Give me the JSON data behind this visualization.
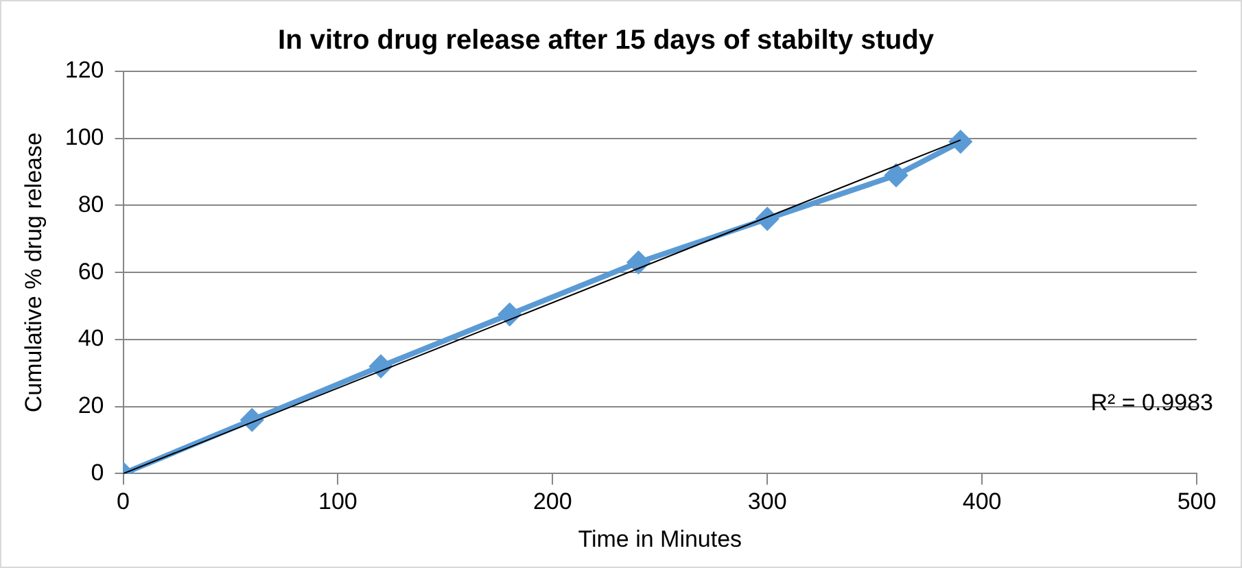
{
  "chart_data": {
    "type": "line",
    "title": "In vitro drug release after 15 days of stabilty study",
    "xlabel": "Time in Minutes",
    "ylabel": "Cumulative % drug release",
    "x": [
      0,
      60,
      120,
      180,
      240,
      300,
      360,
      390
    ],
    "series": [
      {
        "color": "#5b9bd5",
        "values": [
          0,
          16,
          32,
          47.5,
          63,
          76,
          89,
          99
        ],
        "marker": "diamond"
      },
      {
        "color": "#000000",
        "x": [
          0,
          390
        ],
        "values": [
          0,
          99.5
        ],
        "marker": "none"
      }
    ],
    "xlim": [
      0,
      500
    ],
    "xticks": [
      0,
      100,
      200,
      300,
      400,
      500
    ],
    "ylim": [
      0,
      120
    ],
    "yticks": [
      0,
      20,
      40,
      60,
      80,
      100,
      120
    ],
    "grid": "y",
    "legend": false,
    "annotations": [
      "R² = 0.9983"
    ]
  }
}
